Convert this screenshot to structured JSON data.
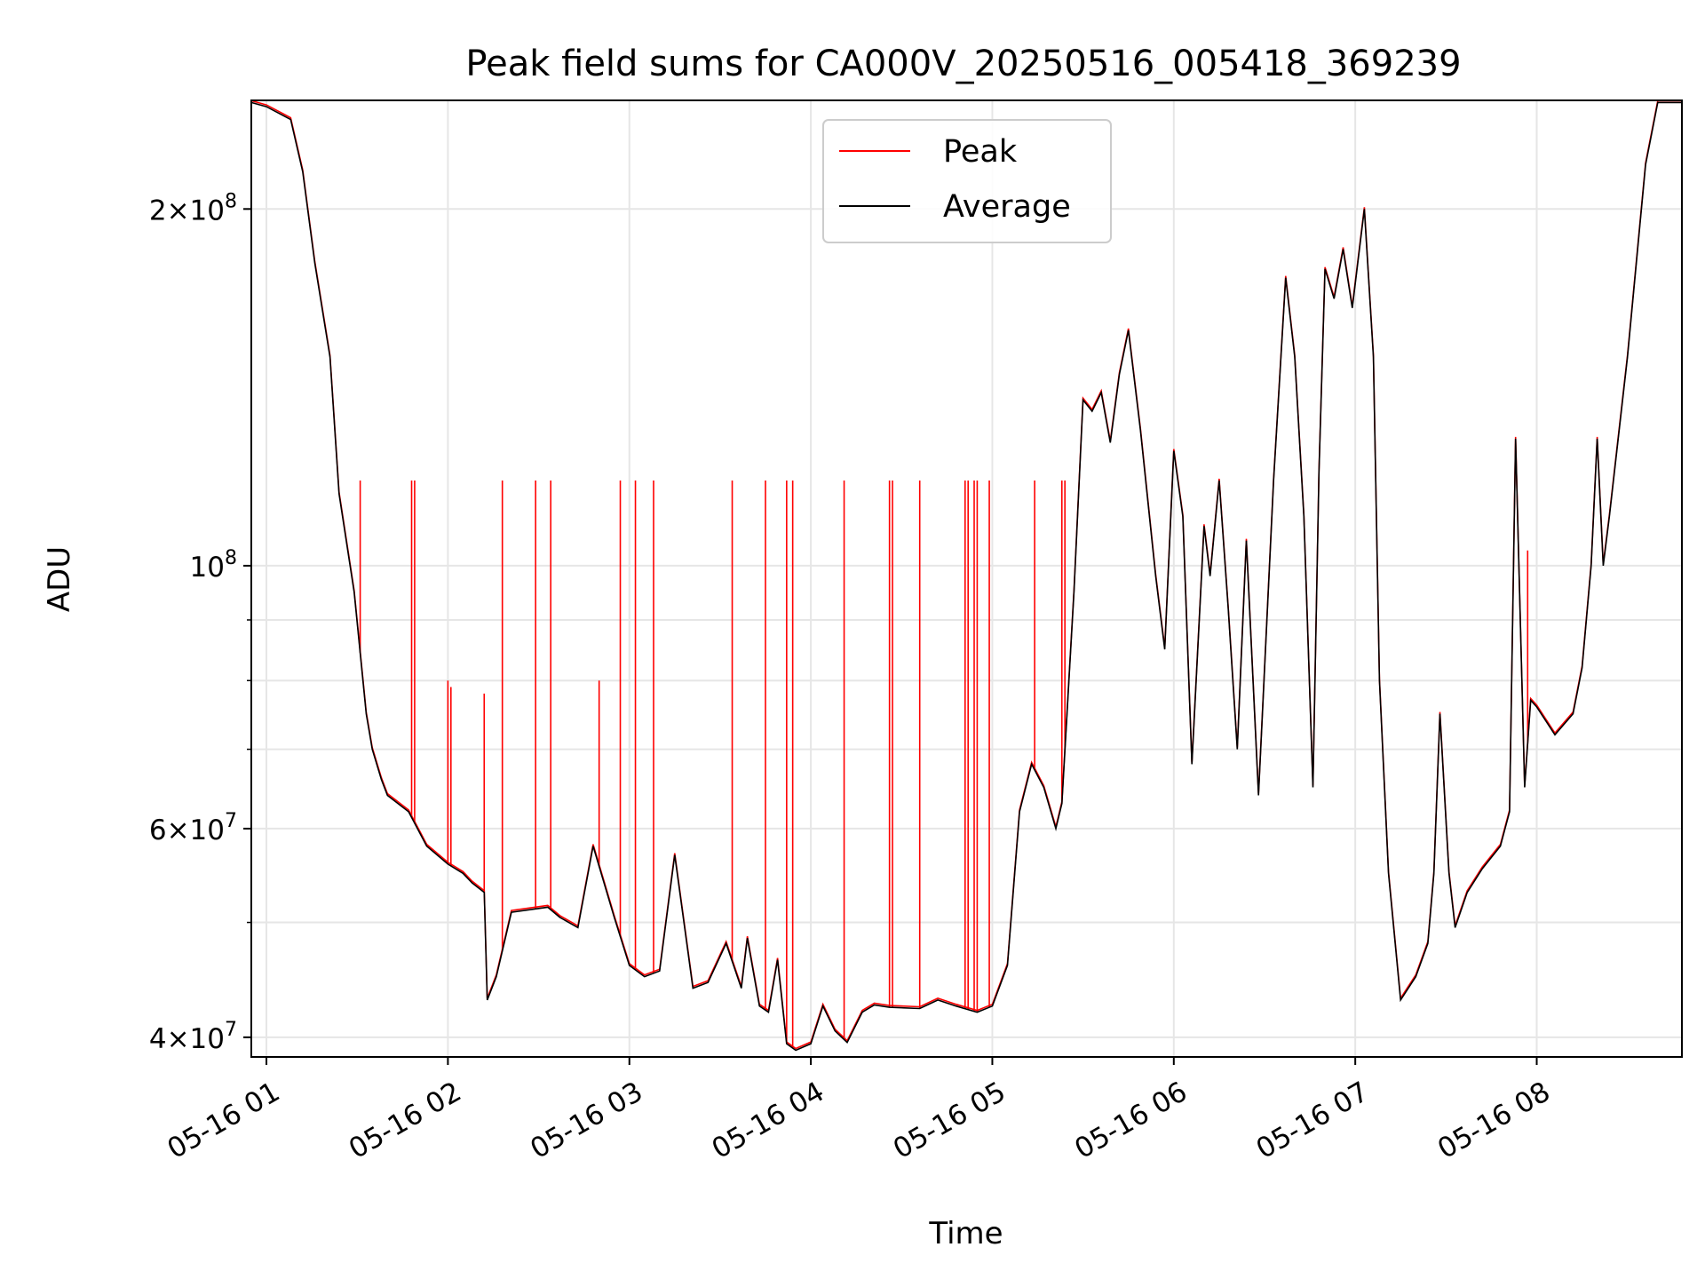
{
  "chart_data": {
    "type": "line",
    "title": "Peak field sums for CA000V_20250516_005418_369239",
    "xlabel": "Time",
    "ylabel": "ADU",
    "yscale": "log",
    "xlim": [
      "05-16 00:55",
      "05-16 08:48"
    ],
    "ylim": [
      38500000,
      247000000
    ],
    "grid": true,
    "legend_position": "upper-center",
    "x_ticks": [
      {
        "time": "05-16 01:00",
        "label": "05-16 01"
      },
      {
        "time": "05-16 02:00",
        "label": "05-16 02"
      },
      {
        "time": "05-16 03:00",
        "label": "05-16 03"
      },
      {
        "time": "05-16 04:00",
        "label": "05-16 04"
      },
      {
        "time": "05-16 05:00",
        "label": "05-16 05"
      },
      {
        "time": "05-16 06:00",
        "label": "05-16 06"
      },
      {
        "time": "05-16 07:00",
        "label": "05-16 07"
      },
      {
        "time": "05-16 08:00",
        "label": "05-16 08"
      }
    ],
    "y_major_ticks": [
      {
        "value": 40000000,
        "mantissa": "4",
        "exponent": "7"
      },
      {
        "value": 60000000,
        "mantissa": "6",
        "exponent": "7"
      },
      {
        "value": 100000000,
        "mantissa": "",
        "exponent": "8"
      },
      {
        "value": 200000000,
        "mantissa": "2",
        "exponent": "8"
      }
    ],
    "y_minor_ticks": [
      50000000,
      70000000,
      80000000,
      90000000
    ],
    "series": [
      {
        "name": "Peak",
        "color": "#ff0000",
        "spikes": [
          {
            "time": "05-16 01:31",
            "value": 118000000
          },
          {
            "time": "05-16 01:48",
            "value": 118000000
          },
          {
            "time": "05-16 01:49",
            "value": 118000000
          },
          {
            "time": "05-16 02:00",
            "value": 80000000
          },
          {
            "time": "05-16 02:01",
            "value": 79000000
          },
          {
            "time": "05-16 02:12",
            "value": 78000000
          },
          {
            "time": "05-16 02:18",
            "value": 118000000
          },
          {
            "time": "05-16 02:29",
            "value": 118000000
          },
          {
            "time": "05-16 02:34",
            "value": 118000000
          },
          {
            "time": "05-16 02:50",
            "value": 80000000
          },
          {
            "time": "05-16 02:57",
            "value": 118000000
          },
          {
            "time": "05-16 03:02",
            "value": 118000000
          },
          {
            "time": "05-16 03:08",
            "value": 118000000
          },
          {
            "time": "05-16 03:34",
            "value": 118000000
          },
          {
            "time": "05-16 03:45",
            "value": 118000000
          },
          {
            "time": "05-16 03:52",
            "value": 118000000
          },
          {
            "time": "05-16 03:54",
            "value": 118000000
          },
          {
            "time": "05-16 04:11",
            "value": 118000000
          },
          {
            "time": "05-16 04:26",
            "value": 118000000
          },
          {
            "time": "05-16 04:27",
            "value": 118000000
          },
          {
            "time": "05-16 04:36",
            "value": 118000000
          },
          {
            "time": "05-16 04:51",
            "value": 118000000
          },
          {
            "time": "05-16 04:52",
            "value": 118000000
          },
          {
            "time": "05-16 04:54",
            "value": 118000000
          },
          {
            "time": "05-16 04:55",
            "value": 118000000
          },
          {
            "time": "05-16 04:59",
            "value": 118000000
          },
          {
            "time": "05-16 05:14",
            "value": 118000000
          },
          {
            "time": "05-16 05:23",
            "value": 118000000
          },
          {
            "time": "05-16 05:24",
            "value": 118000000
          },
          {
            "time": "05-16 07:57",
            "value": 103000000
          }
        ]
      },
      {
        "name": "Average",
        "color": "#000000",
        "x": [
          "05-16 00:55",
          "05-16 01:00",
          "05-16 01:08",
          "05-16 01:12",
          "05-16 01:16",
          "05-16 01:21",
          "05-16 01:24",
          "05-16 01:29",
          "05-16 01:33",
          "05-16 01:35",
          "05-16 01:38",
          "05-16 01:40",
          "05-16 01:47",
          "05-16 01:53",
          "05-16 02:00",
          "05-16 02:05",
          "05-16 02:08",
          "05-16 02:12",
          "05-16 02:13",
          "05-16 02:16",
          "05-16 02:21",
          "05-16 02:33",
          "05-16 02:37",
          "05-16 02:43",
          "05-16 02:48",
          "05-16 02:55",
          "05-16 03:00",
          "05-16 03:05",
          "05-16 03:10",
          "05-16 03:15",
          "05-16 03:21",
          "05-16 03:26",
          "05-16 03:32",
          "05-16 03:37",
          "05-16 03:39",
          "05-16 03:43",
          "05-16 03:46",
          "05-16 03:49",
          "05-16 03:52",
          "05-16 03:55",
          "05-16 04:00",
          "05-16 04:04",
          "05-16 04:08",
          "05-16 04:12",
          "05-16 04:17",
          "05-16 04:21",
          "05-16 04:26",
          "05-16 04:36",
          "05-16 04:42",
          "05-16 04:48",
          "05-16 04:55",
          "05-16 05:00",
          "05-16 05:05",
          "05-16 05:09",
          "05-16 05:13",
          "05-16 05:17",
          "05-16 05:21",
          "05-16 05:23",
          "05-16 05:27",
          "05-16 05:30",
          "05-16 05:33",
          "05-16 05:36",
          "05-16 05:39",
          "05-16 05:42",
          "05-16 05:45",
          "05-16 05:49",
          "05-16 05:54",
          "05-16 05:57",
          "05-16 06:00",
          "05-16 06:03",
          "05-16 06:06",
          "05-16 06:10",
          "05-16 06:12",
          "05-16 06:15",
          "05-16 06:18",
          "05-16 06:21",
          "05-16 06:24",
          "05-16 06:28",
          "05-16 06:33",
          "05-16 06:37",
          "05-16 06:40",
          "05-16 06:43",
          "05-16 06:46",
          "05-16 06:48",
          "05-16 06:50",
          "05-16 06:53",
          "05-16 06:56",
          "05-16 06:59",
          "05-16 07:03",
          "05-16 07:06",
          "05-16 07:08",
          "05-16 07:11",
          "05-16 07:15",
          "05-16 07:20",
          "05-16 07:24",
          "05-16 07:26",
          "05-16 07:28",
          "05-16 07:31",
          "05-16 07:33",
          "05-16 07:37",
          "05-16 07:42",
          "05-16 07:48",
          "05-16 07:51",
          "05-16 07:53",
          "05-16 07:56",
          "05-16 07:58",
          "05-16 08:00",
          "05-16 08:06",
          "05-16 08:12",
          "05-16 08:15",
          "05-16 08:18",
          "05-16 08:20",
          "05-16 08:22",
          "05-16 08:24",
          "05-16 08:30",
          "05-16 08:36",
          "05-16 08:40",
          "05-16 08:48"
        ],
        "y": [
          246000000,
          244000000,
          238000000,
          215000000,
          180000000,
          150000000,
          115000000,
          95000000,
          75000000,
          70000000,
          66000000,
          64000000,
          62000000,
          58000000,
          56000000,
          55000000,
          54000000,
          53000000,
          43000000,
          45000000,
          51000000,
          51500000,
          50500000,
          49500000,
          58000000,
          50500000,
          46000000,
          45000000,
          45500000,
          57000000,
          44000000,
          44500000,
          48000000,
          44000000,
          48500000,
          42500000,
          42000000,
          46500000,
          39500000,
          39000000,
          39500000,
          42500000,
          40500000,
          39600000,
          42000000,
          42600000,
          42400000,
          42300000,
          43000000,
          42500000,
          42000000,
          42500000,
          46000000,
          62000000,
          68000000,
          65000000,
          60000000,
          63000000,
          95000000,
          138000000,
          135000000,
          140000000,
          127000000,
          145000000,
          158000000,
          130000000,
          98000000,
          85000000,
          125000000,
          110000000,
          68000000,
          108000000,
          98000000,
          118000000,
          92000000,
          70000000,
          105000000,
          64000000,
          118000000,
          175000000,
          150000000,
          110000000,
          65000000,
          120000000,
          178000000,
          168000000,
          185000000,
          165000000,
          200000000,
          150000000,
          80000000,
          55000000,
          43000000,
          45000000,
          48000000,
          55000000,
          75000000,
          55000000,
          49500000,
          53000000,
          55500000,
          58000000,
          62000000,
          128000000,
          65000000,
          77000000,
          76000000,
          72000000,
          75000000,
          82000000,
          100000000,
          128000000,
          100000000,
          110000000,
          150000000,
          218000000,
          246000000,
          246000000
        ]
      }
    ]
  }
}
